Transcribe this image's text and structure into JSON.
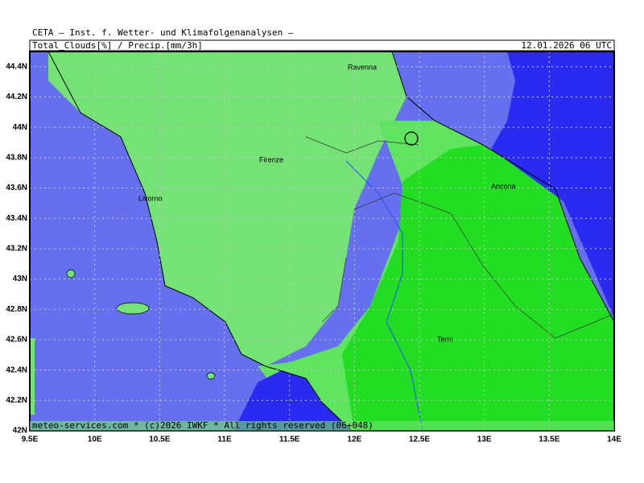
{
  "header": {
    "line1": "CETA — Inst. f. Wetter- und Klimafolgenanalysen —",
    "parameter": "Total_Clouds[%] / Precip.[mm/3h]",
    "valid_time": "12.01.2026 06 UTC"
  },
  "map": {
    "xlim": [
      9.5,
      14
    ],
    "ylim": [
      42,
      44.5
    ],
    "xticks": [
      {
        "value": 9.5,
        "label": "9.5E"
      },
      {
        "value": 10,
        "label": "10E"
      },
      {
        "value": 10.5,
        "label": "10.5E"
      },
      {
        "value": 11,
        "label": "11E"
      },
      {
        "value": 11.5,
        "label": "11.5E"
      },
      {
        "value": 12,
        "label": "12E"
      },
      {
        "value": 12.5,
        "label": "12.5E"
      },
      {
        "value": 13,
        "label": "13E"
      },
      {
        "value": 13.5,
        "label": "13.5E"
      },
      {
        "value": 14,
        "label": "14E"
      }
    ],
    "yticks": [
      {
        "value": 42,
        "label": "42N"
      },
      {
        "value": 42.2,
        "label": "42.2N"
      },
      {
        "value": 42.4,
        "label": "42.4N"
      },
      {
        "value": 42.6,
        "label": "42.6N"
      },
      {
        "value": 42.8,
        "label": "42.8N"
      },
      {
        "value": 43,
        "label": "43N"
      },
      {
        "value": 43.2,
        "label": "43.2N"
      },
      {
        "value": 43.4,
        "label": "43.4N"
      },
      {
        "value": 43.6,
        "label": "43.6N"
      },
      {
        "value": 43.8,
        "label": "43.8N"
      },
      {
        "value": 44,
        "label": "44N"
      },
      {
        "value": 44.2,
        "label": "44.2N"
      },
      {
        "value": 44.4,
        "label": "44.4N"
      }
    ],
    "cities": [
      "Ravenna",
      "Firenze",
      "Livorno",
      "Ancona",
      "Terni"
    ],
    "footer": "meteo-services.com * (c)2026 IWKF * All rights reserved (06+048)"
  }
}
